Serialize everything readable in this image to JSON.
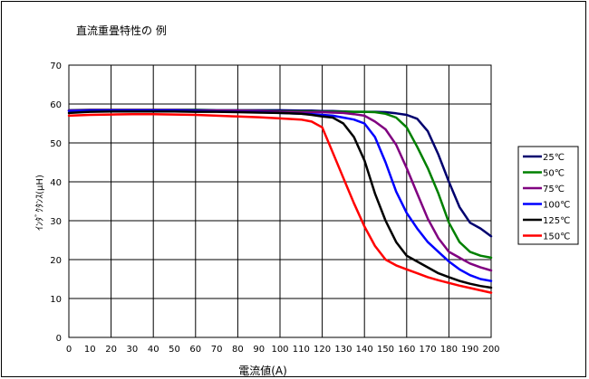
{
  "chart_data": {
    "type": "line",
    "title": "直流重畳特性の 例",
    "xlabel": "電流値(A)",
    "ylabel": "ｲﾝﾀﾞｸﾀﾝｽ(μH)",
    "xlim": [
      0,
      200
    ],
    "ylim": [
      0,
      70
    ],
    "xticks": [
      0,
      10,
      20,
      30,
      40,
      50,
      60,
      70,
      80,
      90,
      100,
      110,
      120,
      130,
      140,
      150,
      160,
      170,
      180,
      190,
      200
    ],
    "yticks": [
      0,
      10,
      20,
      30,
      40,
      50,
      60,
      70
    ],
    "grid": true,
    "legend_position": "right",
    "x": [
      0,
      10,
      20,
      30,
      40,
      50,
      60,
      70,
      80,
      90,
      100,
      110,
      115,
      120,
      125,
      130,
      135,
      140,
      145,
      150,
      155,
      160,
      165,
      170,
      175,
      180,
      185,
      190,
      195,
      200
    ],
    "series": [
      {
        "name": "25℃",
        "color": "#00006e",
        "values": [
          58.4,
          58.5,
          58.5,
          58.5,
          58.5,
          58.5,
          58.5,
          58.4,
          58.4,
          58.4,
          58.4,
          58.3,
          58.3,
          58.2,
          58.2,
          58.1,
          58.0,
          58.0,
          58.0,
          57.9,
          57.6,
          57.2,
          56.2,
          53.0,
          47.0,
          40.0,
          33.5,
          29.5,
          28.0,
          26.0
        ]
      },
      {
        "name": "50℃",
        "color": "#008000",
        "values": [
          58.3,
          58.4,
          58.4,
          58.4,
          58.4,
          58.4,
          58.4,
          58.3,
          58.3,
          58.2,
          58.1,
          58.1,
          58.1,
          58.0,
          58.0,
          58.0,
          58.0,
          58.0,
          57.9,
          57.5,
          56.5,
          54.0,
          49.0,
          43.5,
          37.0,
          29.5,
          24.5,
          22.0,
          21.0,
          20.5
        ]
      },
      {
        "name": "75℃",
        "color": "#800080",
        "values": [
          58.3,
          58.4,
          58.4,
          58.4,
          58.4,
          58.4,
          58.3,
          58.3,
          58.3,
          58.2,
          58.0,
          57.9,
          57.9,
          57.9,
          57.8,
          57.7,
          57.4,
          57.0,
          55.5,
          53.5,
          49.5,
          43.5,
          37.0,
          30.5,
          25.5,
          22.0,
          20.5,
          19.0,
          18.0,
          17.2
        ]
      },
      {
        "name": "100℃",
        "color": "#0000ff",
        "values": [
          58.2,
          58.3,
          58.3,
          58.3,
          58.3,
          58.3,
          58.2,
          58.1,
          58.0,
          57.9,
          57.7,
          57.5,
          57.4,
          57.2,
          57.0,
          56.5,
          56.0,
          55.0,
          51.5,
          45.0,
          37.5,
          32.0,
          28.0,
          24.5,
          22.0,
          19.5,
          17.5,
          16.0,
          15.0,
          14.5
        ]
      },
      {
        "name": "125℃",
        "color": "#000000",
        "values": [
          57.7,
          58.0,
          58.1,
          58.1,
          58.1,
          58.1,
          58.0,
          58.0,
          57.9,
          57.8,
          57.7,
          57.5,
          57.2,
          56.8,
          56.5,
          55.0,
          51.5,
          45.5,
          37.0,
          30.0,
          24.5,
          21.0,
          19.5,
          18.0,
          16.5,
          15.5,
          14.5,
          13.8,
          13.2,
          12.8
        ]
      },
      {
        "name": "150℃",
        "color": "#ff0000",
        "values": [
          57.0,
          57.2,
          57.3,
          57.4,
          57.4,
          57.3,
          57.2,
          57.0,
          56.8,
          56.6,
          56.3,
          56.0,
          55.5,
          54.0,
          47.5,
          41.0,
          34.5,
          28.5,
          23.5,
          20.0,
          18.5,
          17.5,
          16.5,
          15.5,
          14.7,
          14.0,
          13.3,
          12.7,
          12.1,
          11.5
        ]
      }
    ]
  }
}
